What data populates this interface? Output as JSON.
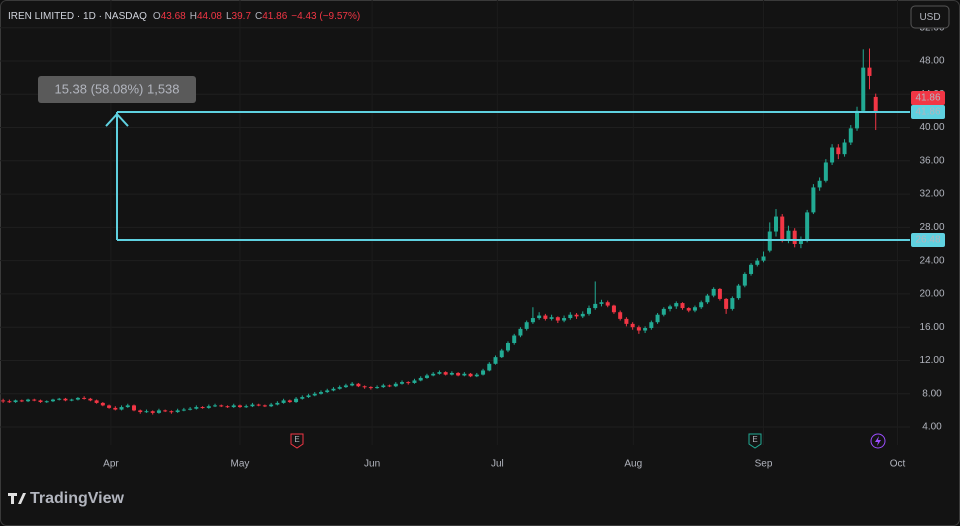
{
  "chart_data": {
    "type": "candlestick",
    "title": "IREN LIMITED · 1D · NASDAQ",
    "ohlc_keys": [
      "O",
      "H",
      "L",
      "C"
    ],
    "change": "−4.43 (−9.57%)",
    "currency": "USD",
    "brand": "TradingView",
    "up_color": "#22ab94",
    "down_color": "#f23645",
    "ylim": [
      1.84,
      55.33
    ],
    "yticks": [
      {
        "value": 4,
        "label": "4.00"
      },
      {
        "value": 8,
        "label": "8.00"
      },
      {
        "value": 12,
        "label": "12.00"
      },
      {
        "value": 16,
        "label": "16.00"
      },
      {
        "value": 20,
        "label": "20.00"
      },
      {
        "value": 24,
        "label": "24.00"
      },
      {
        "value": 28,
        "label": "28.00"
      },
      {
        "value": 32,
        "label": "32.00"
      },
      {
        "value": 36,
        "label": "36.00"
      },
      {
        "value": 40,
        "label": "40.00"
      },
      {
        "value": 44,
        "label": "44.00"
      },
      {
        "value": 48,
        "label": "48.00"
      },
      {
        "value": 52,
        "label": "52.00"
      }
    ],
    "xlim": [
      0,
      146
    ],
    "xticks": [
      {
        "value": 17.8,
        "label": "Apr"
      },
      {
        "value": 38.5,
        "label": "May"
      },
      {
        "value": 59.7,
        "label": "Jun"
      },
      {
        "value": 79.8,
        "label": "Jul"
      },
      {
        "value": 101.6,
        "label": "Aug"
      },
      {
        "value": 122.5,
        "label": "Sep"
      },
      {
        "value": 144,
        "label": "Oct"
      }
    ],
    "grid": true,
    "measure": {
      "from": 26.48,
      "to": 41.86,
      "label": "15.38 (58.08%) 1,538",
      "color": "#5fd1e0"
    },
    "series": [
      {
        "name": "IREN",
        "ohlc": [
          [
            7.2,
            7.4,
            6.9,
            7.1
          ],
          [
            7.1,
            7.3,
            6.9,
            7.0
          ],
          [
            7.0,
            7.3,
            6.9,
            7.2
          ],
          [
            7.2,
            7.3,
            7.0,
            7.1
          ],
          [
            7.1,
            7.4,
            7.0,
            7.3
          ],
          [
            7.3,
            7.4,
            7.1,
            7.2
          ],
          [
            7.2,
            7.3,
            6.9,
            7.0
          ],
          [
            7.0,
            7.2,
            6.9,
            7.1
          ],
          [
            7.1,
            7.4,
            7.0,
            7.3
          ],
          [
            7.3,
            7.5,
            7.2,
            7.4
          ],
          [
            7.4,
            7.5,
            7.1,
            7.2
          ],
          [
            7.2,
            7.4,
            7.1,
            7.3
          ],
          [
            7.3,
            7.6,
            7.2,
            7.5
          ],
          [
            7.5,
            7.7,
            7.3,
            7.4
          ],
          [
            7.4,
            7.5,
            7.1,
            7.2
          ],
          [
            7.2,
            7.3,
            6.8,
            6.9
          ],
          [
            6.9,
            7.0,
            6.5,
            6.6
          ],
          [
            6.6,
            6.7,
            6.2,
            6.3
          ],
          [
            6.3,
            6.5,
            6.0,
            6.1
          ],
          [
            6.1,
            6.6,
            6.0,
            6.4
          ],
          [
            6.4,
            6.8,
            6.3,
            6.6
          ],
          [
            6.6,
            6.7,
            5.9,
            6.0
          ],
          [
            6.0,
            6.1,
            5.6,
            5.8
          ],
          [
            5.8,
            6.1,
            5.7,
            5.9
          ],
          [
            5.9,
            6.0,
            5.5,
            5.7
          ],
          [
            5.7,
            6.2,
            5.6,
            6.0
          ],
          [
            6.0,
            6.1,
            5.8,
            5.9
          ],
          [
            5.9,
            6.0,
            5.6,
            5.8
          ],
          [
            5.8,
            6.2,
            5.7,
            6.0
          ],
          [
            6.0,
            6.3,
            5.9,
            6.1
          ],
          [
            6.1,
            6.4,
            6.0,
            6.2
          ],
          [
            6.2,
            6.6,
            6.1,
            6.4
          ],
          [
            6.4,
            6.5,
            6.2,
            6.3
          ],
          [
            6.3,
            6.7,
            6.2,
            6.5
          ],
          [
            6.5,
            6.8,
            6.4,
            6.6
          ],
          [
            6.6,
            6.7,
            6.4,
            6.5
          ],
          [
            6.5,
            6.6,
            6.3,
            6.4
          ],
          [
            6.4,
            6.8,
            6.3,
            6.6
          ],
          [
            6.6,
            6.7,
            6.3,
            6.4
          ],
          [
            6.4,
            6.7,
            6.3,
            6.5
          ],
          [
            6.5,
            6.9,
            6.4,
            6.7
          ],
          [
            6.7,
            6.8,
            6.5,
            6.6
          ],
          [
            6.6,
            6.7,
            6.4,
            6.5
          ],
          [
            6.5,
            6.9,
            6.4,
            6.7
          ],
          [
            6.7,
            7.1,
            6.6,
            6.9
          ],
          [
            6.9,
            7.4,
            6.8,
            7.2
          ],
          [
            7.2,
            7.3,
            6.9,
            7.0
          ],
          [
            7.0,
            7.6,
            6.9,
            7.4
          ],
          [
            7.4,
            7.8,
            7.3,
            7.6
          ],
          [
            7.6,
            8.0,
            7.5,
            7.8
          ],
          [
            7.8,
            8.2,
            7.7,
            8.0
          ],
          [
            8.0,
            8.4,
            7.9,
            8.2
          ],
          [
            8.2,
            8.6,
            8.1,
            8.4
          ],
          [
            8.4,
            8.8,
            8.3,
            8.6
          ],
          [
            8.6,
            9.0,
            8.5,
            8.8
          ],
          [
            8.8,
            9.2,
            8.7,
            9.0
          ],
          [
            9.0,
            9.4,
            8.9,
            9.2
          ],
          [
            9.2,
            9.3,
            8.8,
            8.9
          ],
          [
            8.9,
            9.0,
            8.6,
            8.8
          ],
          [
            8.8,
            8.9,
            8.5,
            8.7
          ],
          [
            8.7,
            9.0,
            8.6,
            8.8
          ],
          [
            8.8,
            9.2,
            8.7,
            9.0
          ],
          [
            9.0,
            9.1,
            8.8,
            8.9
          ],
          [
            8.9,
            9.4,
            8.8,
            9.2
          ],
          [
            9.2,
            9.6,
            9.1,
            9.4
          ],
          [
            9.4,
            9.5,
            9.1,
            9.3
          ],
          [
            9.3,
            9.8,
            9.2,
            9.6
          ],
          [
            9.6,
            10.1,
            9.5,
            9.9
          ],
          [
            9.9,
            10.4,
            9.8,
            10.2
          ],
          [
            10.2,
            10.6,
            10.1,
            10.4
          ],
          [
            10.4,
            10.8,
            10.3,
            10.6
          ],
          [
            10.6,
            10.7,
            10.2,
            10.3
          ],
          [
            10.3,
            10.7,
            10.2,
            10.5
          ],
          [
            10.5,
            10.6,
            10.1,
            10.2
          ],
          [
            10.2,
            10.6,
            10.1,
            10.4
          ],
          [
            10.4,
            10.5,
            10.0,
            10.1
          ],
          [
            10.1,
            10.5,
            10.0,
            10.3
          ],
          [
            10.3,
            11.0,
            10.2,
            10.8
          ],
          [
            10.8,
            11.8,
            10.7,
            11.6
          ],
          [
            11.6,
            12.6,
            11.5,
            12.4
          ],
          [
            12.4,
            13.4,
            12.3,
            13.2
          ],
          [
            13.2,
            14.3,
            13.0,
            14.1
          ],
          [
            14.1,
            15.2,
            13.9,
            15.0
          ],
          [
            15.0,
            16.0,
            14.8,
            15.8
          ],
          [
            15.8,
            16.8,
            15.6,
            16.6
          ],
          [
            16.6,
            18.4,
            16.4,
            17.1
          ],
          [
            17.1,
            17.8,
            16.9,
            17.4
          ],
          [
            17.4,
            17.6,
            16.8,
            17.0
          ],
          [
            17.0,
            17.5,
            16.8,
            17.2
          ],
          [
            17.2,
            17.3,
            16.5,
            16.8
          ],
          [
            16.8,
            17.4,
            16.6,
            17.1
          ],
          [
            17.1,
            17.8,
            16.9,
            17.5
          ],
          [
            17.5,
            17.7,
            17.0,
            17.3
          ],
          [
            17.3,
            17.9,
            17.1,
            17.6
          ],
          [
            17.6,
            18.6,
            17.4,
            18.3
          ],
          [
            18.3,
            21.5,
            18.1,
            18.8
          ],
          [
            18.8,
            19.3,
            18.5,
            19.0
          ],
          [
            19.0,
            19.2,
            18.4,
            18.6
          ],
          [
            18.6,
            18.7,
            17.6,
            17.8
          ],
          [
            17.8,
            18.0,
            16.8,
            17.0
          ],
          [
            17.0,
            17.2,
            16.1,
            16.4
          ],
          [
            16.4,
            16.6,
            15.7,
            16.0
          ],
          [
            16.0,
            16.2,
            15.2,
            15.6
          ],
          [
            15.6,
            16.1,
            15.3,
            15.9
          ],
          [
            15.9,
            16.8,
            15.7,
            16.6
          ],
          [
            16.6,
            17.7,
            16.4,
            17.5
          ],
          [
            17.5,
            18.4,
            17.3,
            18.2
          ],
          [
            18.2,
            18.7,
            17.9,
            18.5
          ],
          [
            18.5,
            19.1,
            18.2,
            18.9
          ],
          [
            18.9,
            19.0,
            18.1,
            18.3
          ],
          [
            18.3,
            18.4,
            17.8,
            18.0
          ],
          [
            18.0,
            18.6,
            17.8,
            18.4
          ],
          [
            18.4,
            19.2,
            18.2,
            19.0
          ],
          [
            19.0,
            20.0,
            18.8,
            19.8
          ],
          [
            19.8,
            20.8,
            19.6,
            20.6
          ],
          [
            20.6,
            20.7,
            19.2,
            19.4
          ],
          [
            19.4,
            19.5,
            17.6,
            18.2
          ],
          [
            18.2,
            19.7,
            18.0,
            19.5
          ],
          [
            19.5,
            21.2,
            19.3,
            21.0
          ],
          [
            21.0,
            22.6,
            20.8,
            22.4
          ],
          [
            22.4,
            23.7,
            22.2,
            23.5
          ],
          [
            23.5,
            24.3,
            23.3,
            24.0
          ],
          [
            24.0,
            25.1,
            23.8,
            24.5
          ],
          [
            25.2,
            28.6,
            25.0,
            27.5
          ],
          [
            27.5,
            30.2,
            26.9,
            29.3
          ],
          [
            29.3,
            29.6,
            26.2,
            26.5
          ],
          [
            26.5,
            28.2,
            26.1,
            27.6
          ],
          [
            27.6,
            27.9,
            25.6,
            26.0
          ],
          [
            26.0,
            26.9,
            25.5,
            26.4
          ],
          [
            26.4,
            30.1,
            26.2,
            29.8
          ],
          [
            29.8,
            33.2,
            29.6,
            32.8
          ],
          [
            32.8,
            34.0,
            32.4,
            33.6
          ],
          [
            33.6,
            36.2,
            33.4,
            35.8
          ],
          [
            35.8,
            38.0,
            35.5,
            37.6
          ],
          [
            37.6,
            38.0,
            36.2,
            36.8
          ],
          [
            36.8,
            38.6,
            36.5,
            38.2
          ],
          [
            38.2,
            40.3,
            37.9,
            39.9
          ],
          [
            39.9,
            42.5,
            39.6,
            42.0
          ],
          [
            42.0,
            49.4,
            41.8,
            47.2
          ],
          [
            47.2,
            49.5,
            44.6,
            46.2
          ],
          [
            43.68,
            44.08,
            39.7,
            41.86
          ]
        ]
      }
    ]
  }
}
